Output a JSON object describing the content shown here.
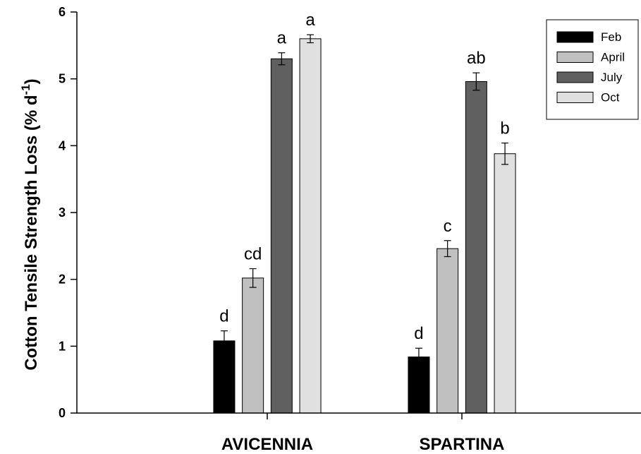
{
  "chart_data": {
    "type": "bar",
    "title": "",
    "xlabel": "",
    "ylabel": "Cotton Tensile Strength Loss (% d",
    "ylabel_sup": "-1",
    "ylabel_close": ")",
    "ylim": [
      0,
      6
    ],
    "yticks": [
      "0",
      "1",
      "2",
      "3",
      "4",
      "5",
      "6"
    ],
    "categories": [
      "AVICENNIA",
      "SPARTINA"
    ],
    "series": [
      {
        "name": "Feb",
        "color": "#000000",
        "values": [
          1.08,
          0.84
        ],
        "errors": [
          0.15,
          0.13
        ],
        "labels": [
          "d",
          "d"
        ]
      },
      {
        "name": "April",
        "color": "#c0c0c0",
        "values": [
          2.02,
          2.46
        ],
        "errors": [
          0.14,
          0.12
        ],
        "labels": [
          "cd",
          "c"
        ]
      },
      {
        "name": "July",
        "color": "#606060",
        "values": [
          5.3,
          4.96
        ],
        "errors": [
          0.09,
          0.13
        ],
        "labels": [
          "a",
          "ab"
        ]
      },
      {
        "name": "Oct",
        "color": "#e0e0e0",
        "values": [
          5.6,
          3.88
        ],
        "errors": [
          0.06,
          0.16
        ],
        "labels": [
          "a",
          "b"
        ]
      }
    ],
    "legend": "top-right",
    "grid": false
  }
}
